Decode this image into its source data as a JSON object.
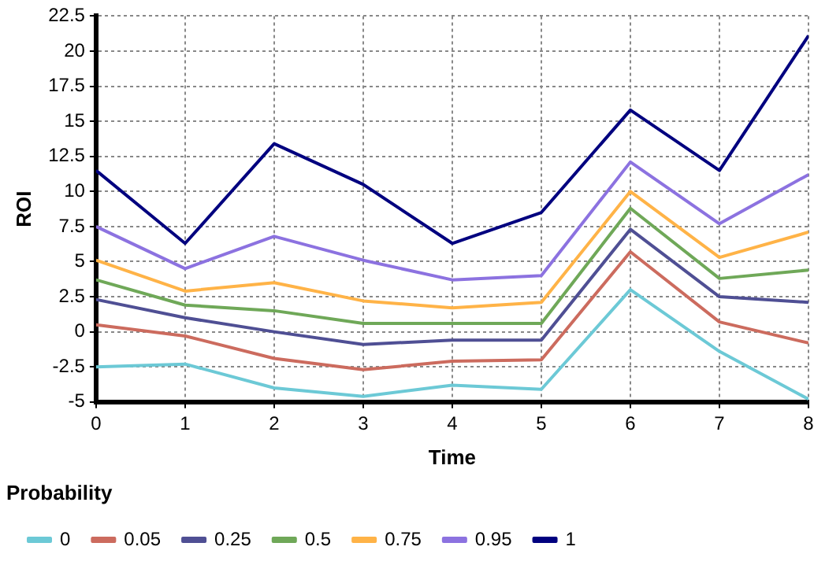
{
  "chart_data": {
    "type": "line",
    "xlabel": "Time",
    "ylabel": "ROI",
    "legend_title": "Probability",
    "legend": "bottom",
    "grid": true,
    "line_style": "solid",
    "marker": "none",
    "x": [
      0,
      1,
      2,
      3,
      4,
      5,
      6,
      7,
      8
    ],
    "xlim": [
      0,
      8
    ],
    "xticks": [
      0,
      1,
      2,
      3,
      4,
      5,
      6,
      7,
      8
    ],
    "ylim": [
      -5,
      22.5
    ],
    "yticks": [
      -5,
      -2.5,
      0,
      2.5,
      5,
      7.5,
      10,
      12.5,
      15,
      17.5,
      20,
      22.5
    ],
    "series": [
      {
        "name": "0",
        "color": "#6cc9d6",
        "values": [
          -2.5,
          -2.3,
          -4.0,
          -4.6,
          -3.8,
          -4.1,
          3.0,
          -1.4,
          -4.8
        ]
      },
      {
        "name": "0.05",
        "color": "#cc6b5e",
        "values": [
          0.5,
          -0.3,
          -1.9,
          -2.7,
          -2.1,
          -2.0,
          5.7,
          0.7,
          -0.8
        ]
      },
      {
        "name": "0.25",
        "color": "#4f4f94",
        "values": [
          2.3,
          1.0,
          0.0,
          -0.9,
          -0.6,
          -0.6,
          7.3,
          2.5,
          2.1
        ]
      },
      {
        "name": "0.5",
        "color": "#6fa858",
        "values": [
          3.7,
          1.9,
          1.5,
          0.6,
          0.6,
          0.6,
          8.8,
          3.8,
          4.4
        ]
      },
      {
        "name": "0.75",
        "color": "#ffb347",
        "values": [
          5.1,
          2.9,
          3.5,
          2.2,
          1.7,
          2.1,
          10.0,
          5.3,
          7.1
        ]
      },
      {
        "name": "0.95",
        "color": "#8c72e0",
        "values": [
          7.5,
          4.5,
          6.8,
          5.1,
          3.7,
          4.0,
          12.1,
          7.7,
          11.2
        ]
      },
      {
        "name": "1",
        "color": "#00007f",
        "values": [
          11.5,
          6.3,
          13.4,
          10.5,
          6.3,
          8.5,
          15.8,
          11.5,
          21.1
        ]
      }
    ]
  }
}
